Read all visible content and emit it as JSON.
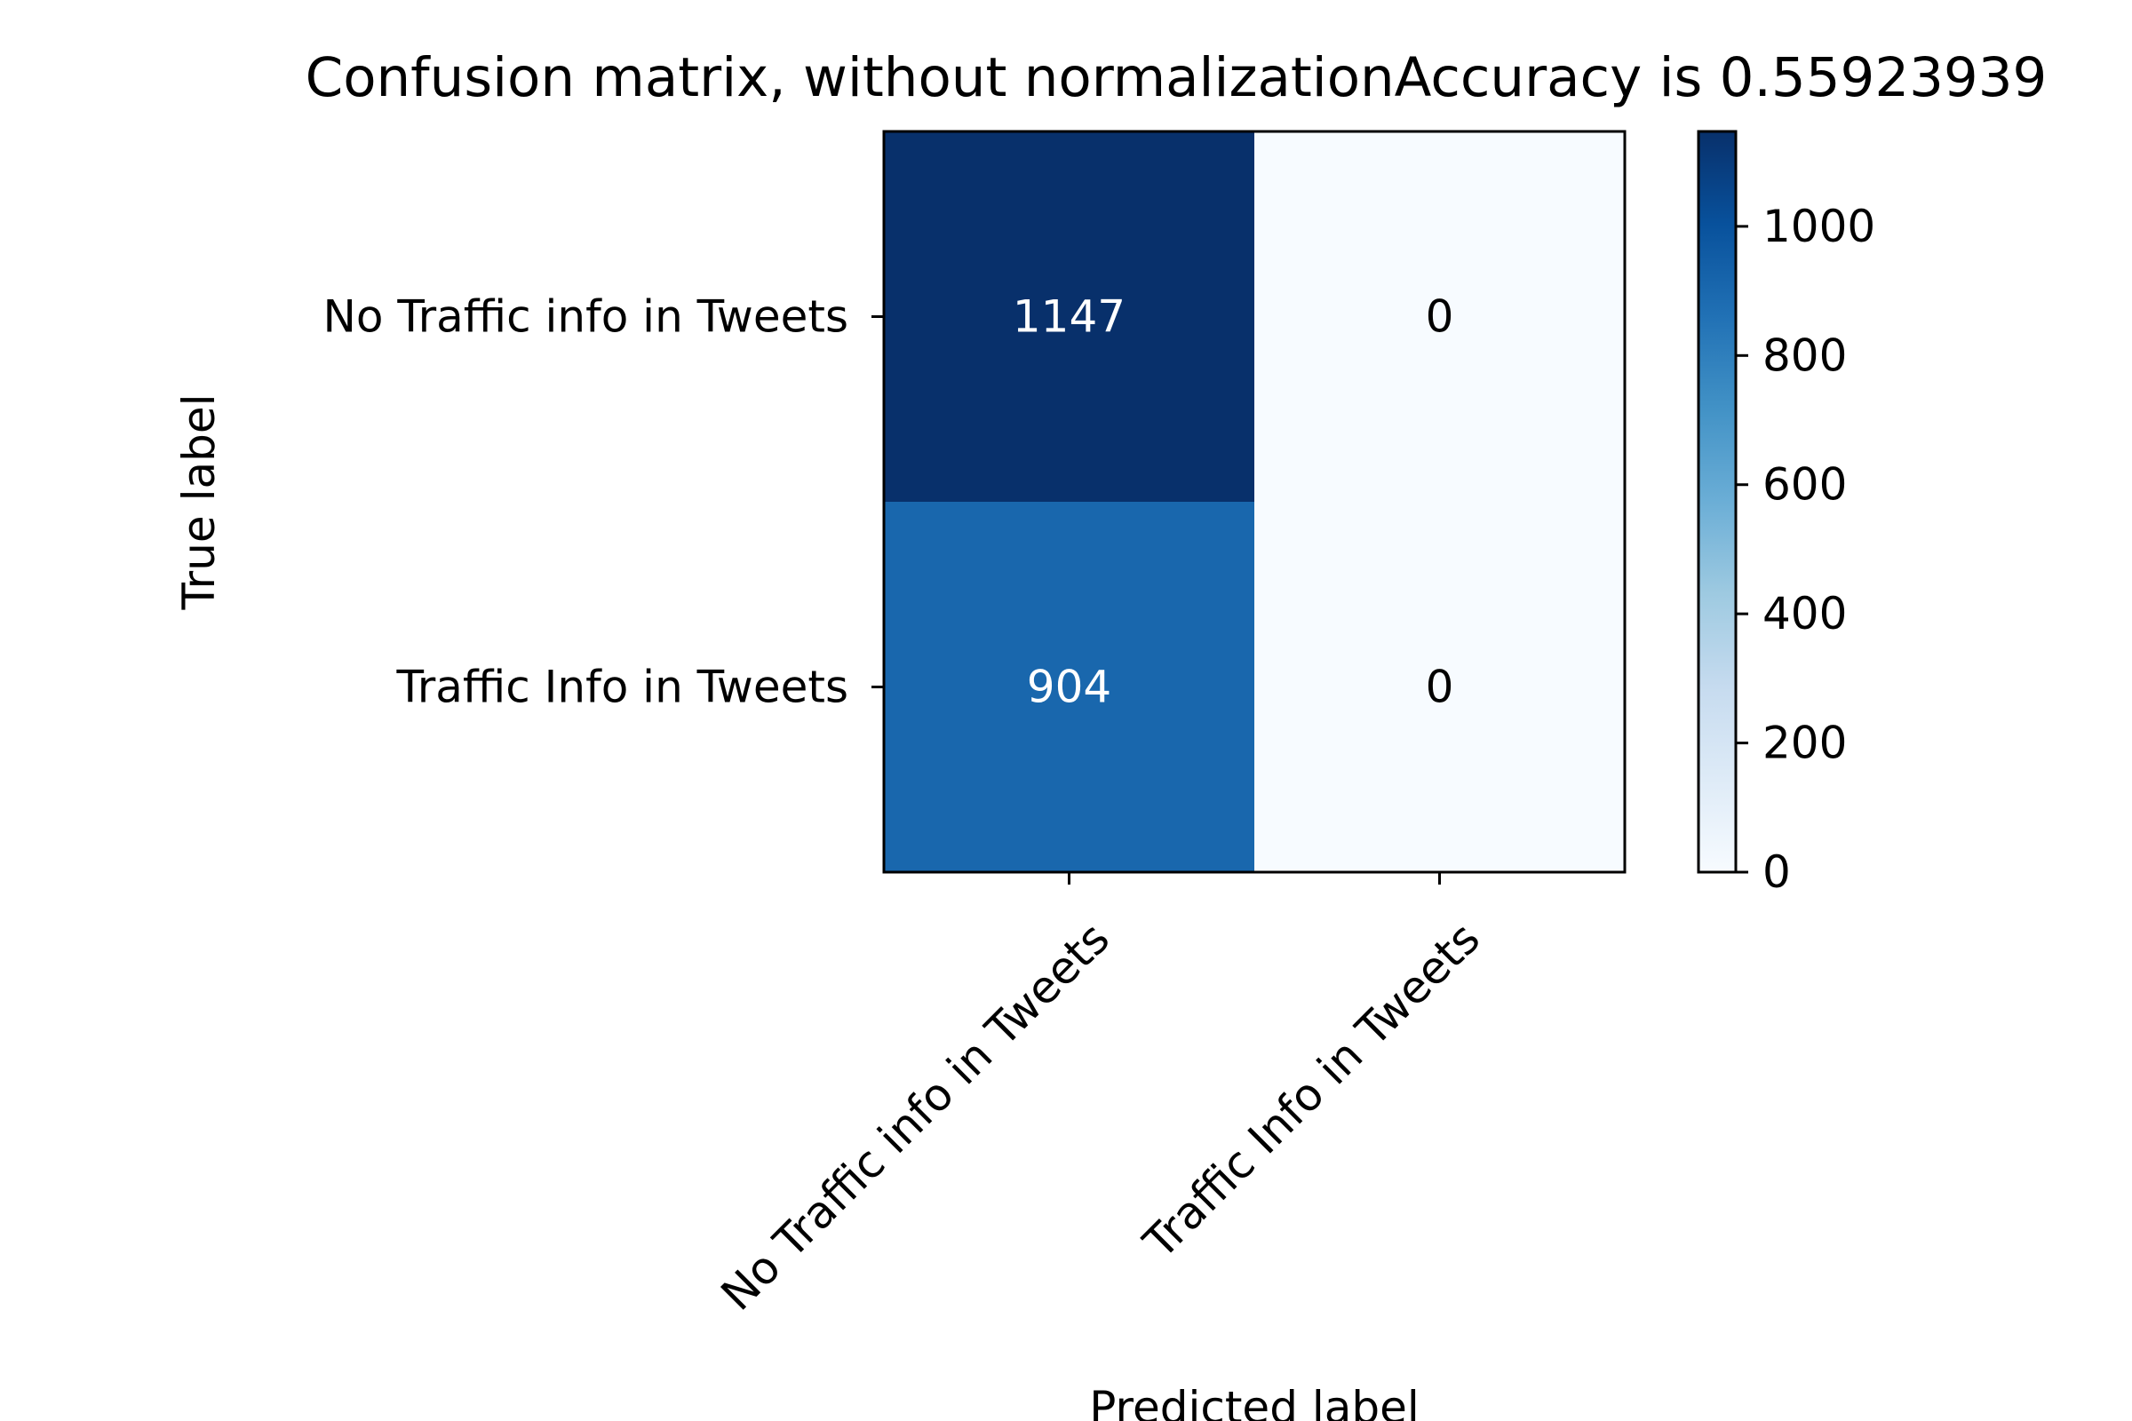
{
  "chart_data": {
    "type": "heatmap",
    "title": "Confusion matrix, without normalizationAccuracy is 0.55923939",
    "xlabel": "Predicted label",
    "ylabel": "True label",
    "row_labels": [
      "No Traffic info in Tweets",
      "Traffic Info in Tweets"
    ],
    "col_labels": [
      "No Traffic info in Tweets",
      "Traffic Info in Tweets"
    ],
    "values": [
      [
        1147,
        0
      ],
      [
        904,
        0
      ]
    ],
    "cell_text": [
      [
        "1147",
        "0"
      ],
      [
        "904",
        "0"
      ]
    ],
    "colormap": "Blues",
    "colormap_stops": [
      "#f7fbff",
      "#deebf7",
      "#c6dbef",
      "#9ecae1",
      "#6baed6",
      "#4292c6",
      "#2171b5",
      "#08519c",
      "#08306b"
    ],
    "colorbar": {
      "range": [
        0,
        1147
      ],
      "ticks": [
        0,
        200,
        400,
        600,
        800,
        1000
      ],
      "tick_labels": [
        "0",
        "200",
        "400",
        "600",
        "800",
        "1000"
      ]
    }
  }
}
